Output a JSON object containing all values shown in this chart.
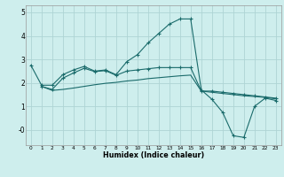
{
  "xlabel": "Humidex (Indice chaleur)",
  "bg_color": "#ceeeed",
  "grid_color": "#aed4d4",
  "line_color": "#1a6b6b",
  "xlim": [
    -0.5,
    23.5
  ],
  "ylim": [
    -0.65,
    5.3
  ],
  "xticks": [
    0,
    1,
    2,
    3,
    4,
    5,
    6,
    7,
    8,
    9,
    10,
    11,
    12,
    13,
    14,
    15,
    16,
    17,
    18,
    19,
    20,
    21,
    22,
    23
  ],
  "yticks": [
    0,
    1,
    2,
    3,
    4,
    5
  ],
  "ytick_labels": [
    "-0",
    "1",
    "2",
    "3",
    "4",
    "5"
  ],
  "line1_x": [
    0,
    1,
    2,
    3,
    4,
    5,
    6,
    7,
    8,
    9,
    10,
    11,
    12,
    13,
    14,
    15,
    16,
    17,
    18,
    19,
    20,
    21,
    22,
    23
  ],
  "line1_y": [
    2.75,
    1.9,
    1.9,
    2.35,
    2.55,
    2.7,
    2.5,
    2.55,
    2.35,
    2.9,
    3.2,
    3.7,
    4.1,
    4.5,
    4.72,
    4.72,
    1.7,
    1.3,
    0.75,
    -0.25,
    -0.32,
    1.0,
    1.35,
    1.25
  ],
  "line2_x": [
    1,
    2,
    3,
    4,
    5,
    6,
    7,
    8,
    9,
    10,
    11,
    12,
    13,
    14,
    15,
    16,
    17,
    18,
    19,
    20,
    21,
    22,
    23
  ],
  "line2_y": [
    1.85,
    1.72,
    2.2,
    2.42,
    2.62,
    2.48,
    2.52,
    2.32,
    2.5,
    2.55,
    2.6,
    2.65,
    2.65,
    2.65,
    2.65,
    1.65,
    1.65,
    1.6,
    1.55,
    1.5,
    1.45,
    1.4,
    1.35
  ],
  "line3_x": [
    1,
    2,
    3,
    4,
    5,
    6,
    7,
    8,
    9,
    10,
    11,
    12,
    13,
    14,
    15,
    16,
    17,
    18,
    19,
    20,
    21,
    22,
    23
  ],
  "line3_y": [
    1.85,
    1.68,
    1.72,
    1.78,
    1.85,
    1.92,
    1.98,
    2.02,
    2.08,
    2.12,
    2.18,
    2.22,
    2.26,
    2.3,
    2.33,
    1.65,
    1.6,
    1.55,
    1.5,
    1.45,
    1.42,
    1.38,
    1.32
  ]
}
